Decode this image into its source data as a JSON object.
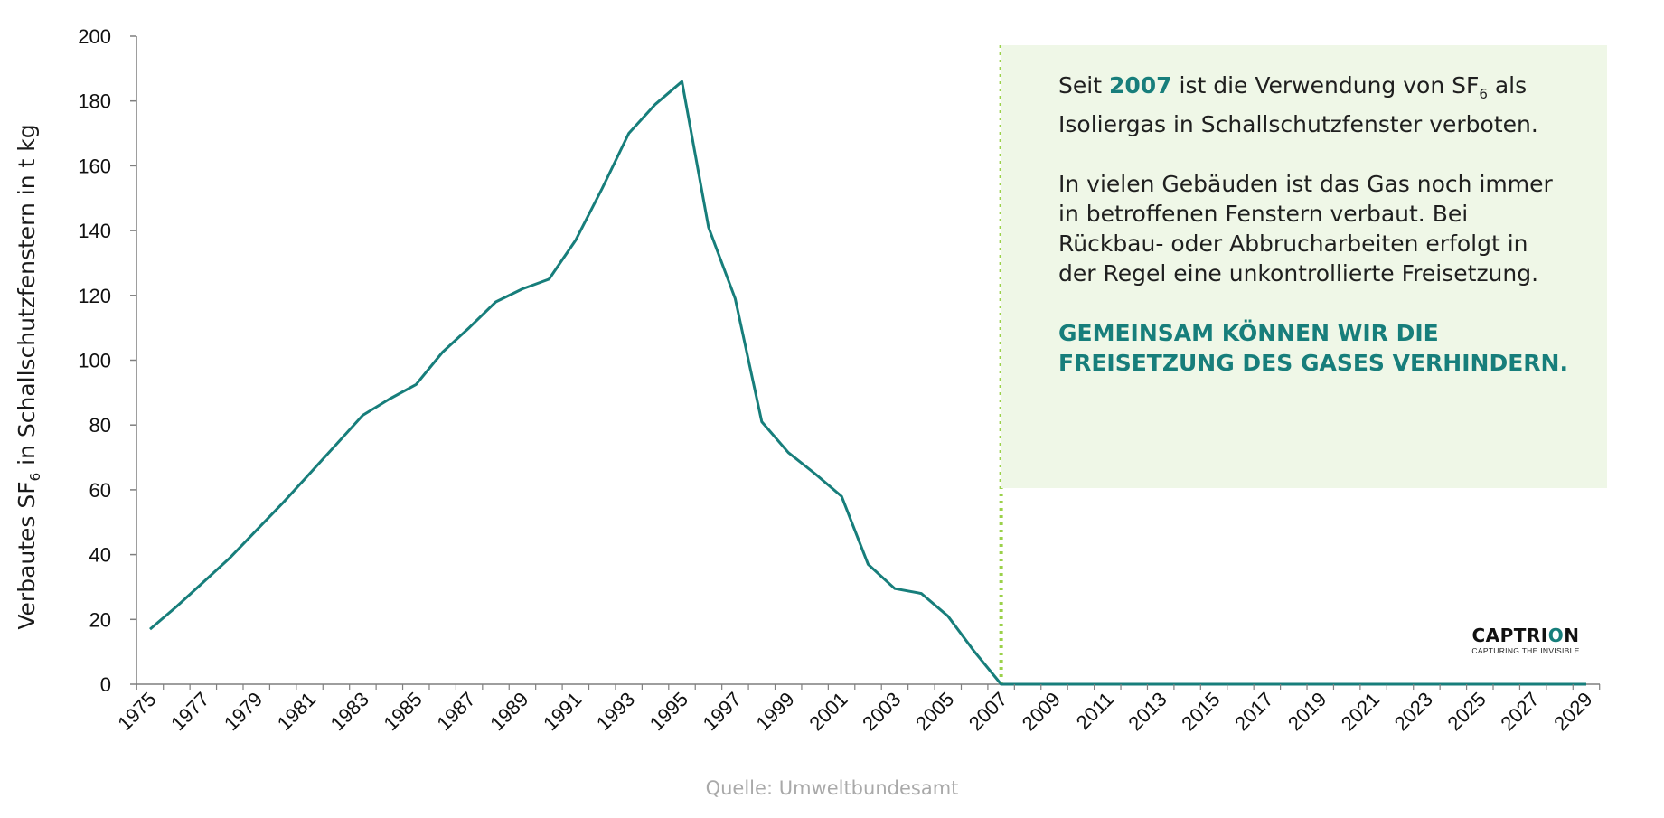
{
  "chart_data": {
    "type": "line",
    "title": "",
    "xlabel": "",
    "ylabel_parts": [
      "Verbautes SF",
      "6",
      " in Schallschutzfenstern in t kg"
    ],
    "ylim": [
      0,
      200
    ],
    "yticks": [
      0,
      20,
      40,
      60,
      80,
      100,
      120,
      140,
      160,
      180,
      200
    ],
    "xlim": [
      1975,
      2029
    ],
    "xtick_labels": [
      "1975",
      "1977",
      "1979",
      "1981",
      "1983",
      "1985",
      "1987",
      "1989",
      "1991",
      "1993",
      "1995",
      "1997",
      "1999",
      "2001",
      "2003",
      "2005",
      "2007",
      "2009",
      "2011",
      "2013",
      "2015",
      "2017",
      "2019",
      "2021",
      "2023",
      "2025",
      "2027",
      "2029"
    ],
    "series": [
      {
        "name": "Verbautes SF6",
        "color": "#177e7b",
        "x": [
          1975,
          1976,
          1977,
          1978,
          1979,
          1980,
          1981,
          1982,
          1983,
          1984,
          1985,
          1986,
          1987,
          1988,
          1989,
          1990,
          1991,
          1992,
          1993,
          1994,
          1995,
          1996,
          1997,
          1998,
          1999,
          2000,
          2001,
          2002,
          2003,
          2004,
          2005,
          2006,
          2007,
          2008,
          2009,
          2010,
          2011,
          2012,
          2013,
          2014,
          2015,
          2016,
          2017,
          2018,
          2019,
          2020,
          2021,
          2022,
          2023,
          2024,
          2025,
          2026,
          2027,
          2028,
          2029
        ],
        "values": [
          17,
          24,
          31.5,
          39,
          47.5,
          56,
          65,
          74,
          83,
          88,
          92.5,
          102.5,
          110,
          118,
          122,
          125,
          137,
          153,
          170,
          179,
          186,
          141,
          119,
          81,
          71.5,
          65,
          58,
          37,
          29.5,
          28,
          21,
          10,
          0,
          0,
          0,
          0,
          0,
          0,
          0,
          0,
          0,
          0,
          0,
          0,
          0,
          0,
          0,
          0,
          0,
          0,
          0,
          0,
          0,
          0,
          0
        ]
      }
    ],
    "marker_line": {
      "x": 2007,
      "color": "#9bd14a",
      "style": "dotted"
    },
    "axis_color": "#7f7f7f"
  },
  "info": {
    "para1_before": "Seit ",
    "para1_year": "2007",
    "para1_middle": " ist die Verwendung von SF",
    "para1_sub": "6",
    "para1_after": " als Isoliergas in Schallschutzfenster verboten.",
    "para2": "In vielen Gebäuden ist das Gas noch immer in betroffenen Fenstern verbaut. Bei Rückbau- oder Abbrucharbeiten erfolgt in der Regel eine unkontrollierte Freisetzung.",
    "callout": "GEMEINSAM KÖNNEN WIR DIE FREISETZUNG DES GASES VERHINDERN.",
    "box_color": "#eff7e7",
    "accent_color": "#177e7b"
  },
  "logo": {
    "name_before": "CAPTRI",
    "name_ring": "O",
    "name_after": "N",
    "tagline": "CAPTURING THE INVISIBLE"
  },
  "source": "Quelle: Umweltbundesamt"
}
